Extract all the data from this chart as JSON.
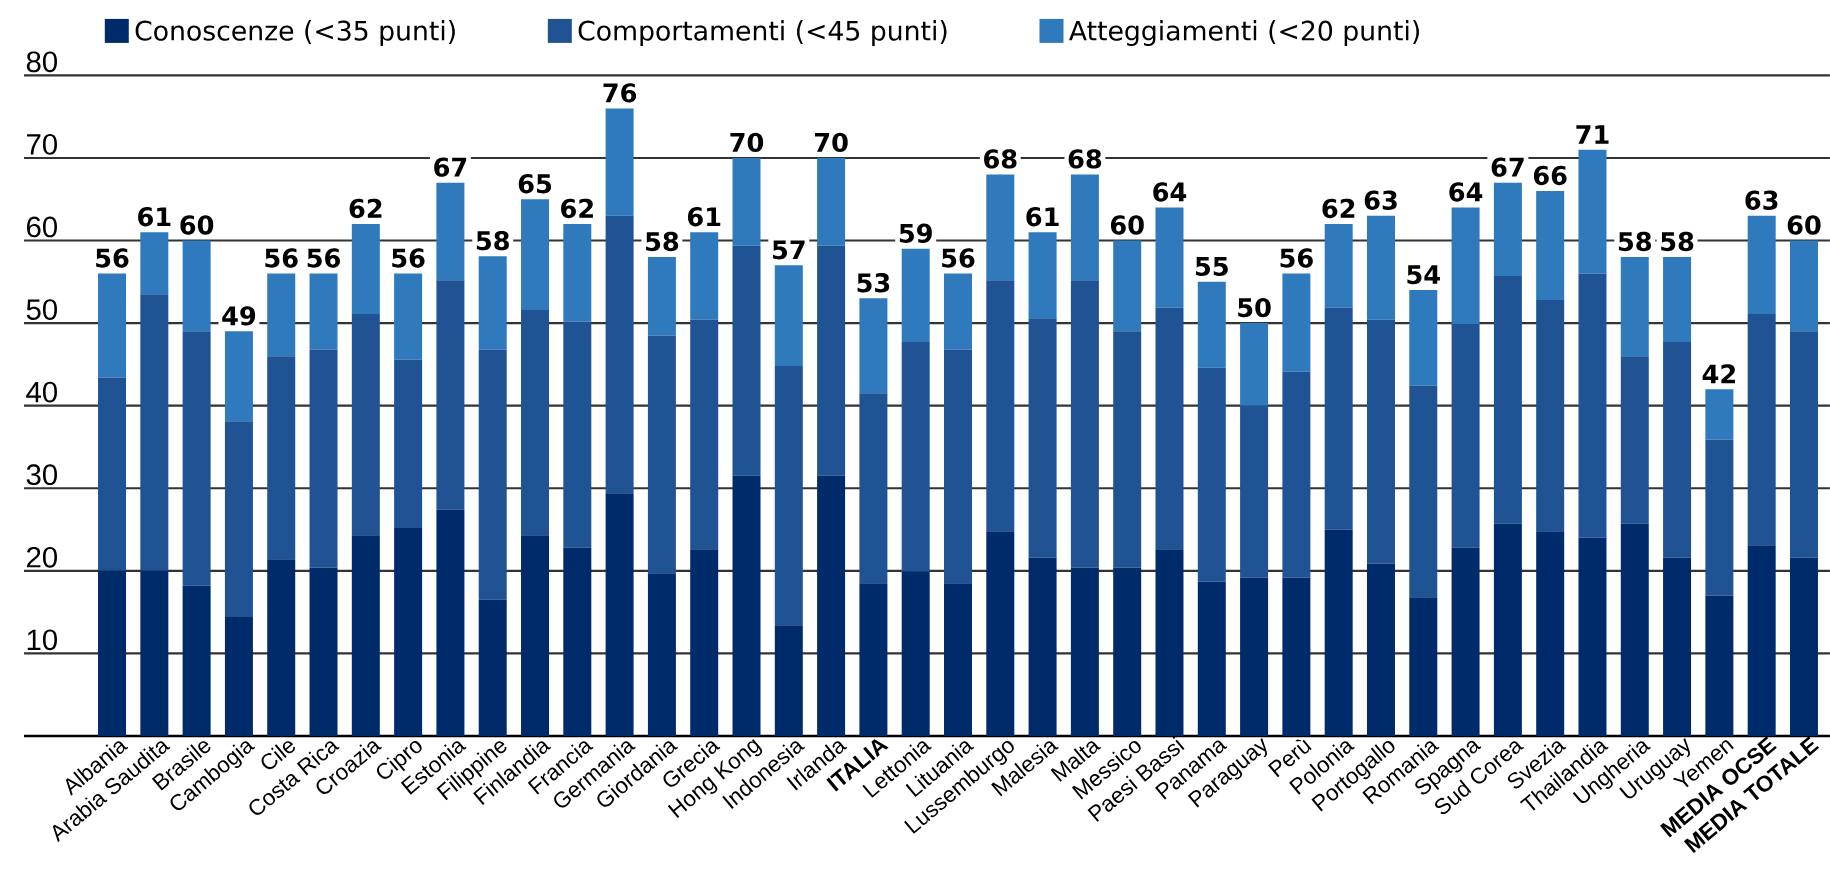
{
  "chart_data": {
    "type": "bar",
    "stacked": true,
    "categories": [
      "Albania",
      "Arabia Saudita",
      "Brasile",
      "Cambogia",
      "Cile",
      "Costa Rica",
      "Croazia",
      "Cipro",
      "Estonia",
      "Filippine",
      "Finlandia",
      "Francia",
      "Germania",
      "Giordania",
      "Grecia",
      "Hong Kong",
      "Indonesia",
      "Irlanda",
      "**ITALIA**",
      "Lettonia",
      "Lituania",
      "Lussemburgo",
      "Malesia",
      "Malta",
      "Messico",
      "Paesi Bassi",
      "Panama",
      "Paraguay",
      "Perù",
      "Polonia",
      "Portogallo",
      "Romania",
      "Spagna",
      "Sud Corea",
      "Svezia",
      "Thailandia",
      "Ungheria",
      "Uruguay",
      "Yemen",
      "**MEDIA OCSE**",
      "**MEDIA TOTALE**"
    ],
    "series": [
      {
        "name": "Conoscenze (<35 punti)",
        "color": "#002b6b",
        "values": [
          20.0,
          20.0,
          18.2,
          14.4,
          21.4,
          20.4,
          24.3,
          25.2,
          27.4,
          16.5,
          24.3,
          22.8,
          29.4,
          19.7,
          22.6,
          31.5,
          13.4,
          31.5,
          18.5,
          19.9,
          18.5,
          24.8,
          21.6,
          20.4,
          20.4,
          22.6,
          18.7,
          19.2,
          19.2,
          25.0,
          20.9,
          16.8,
          22.8,
          25.7,
          24.8,
          24.0,
          25.7,
          21.6,
          17.0,
          23.1,
          21.6
        ]
      },
      {
        "name": "Comportamenti (<45 punti)",
        "color": "#1f5394",
        "values": [
          23.4,
          33.5,
          30.8,
          23.7,
          24.6,
          26.4,
          26.8,
          20.4,
          27.8,
          30.3,
          27.3,
          27.4,
          33.6,
          28.8,
          27.8,
          27.9,
          31.4,
          27.9,
          23.0,
          27.8,
          28.3,
          30.4,
          29.0,
          34.8,
          28.6,
          29.3,
          25.9,
          20.8,
          24.9,
          26.9,
          29.5,
          25.6,
          27.1,
          30.0,
          28.0,
          32.0,
          20.3,
          26.1,
          18.9,
          28.0,
          27.4
        ]
      },
      {
        "name": "Atteggiamenti (<20 punti)",
        "color": "#2e7abd",
        "values": [
          12.6,
          7.5,
          11.0,
          10.9,
          10.0,
          9.2,
          10.9,
          10.4,
          11.8,
          11.3,
          13.4,
          11.8,
          13.0,
          9.5,
          10.6,
          10.6,
          12.2,
          10.6,
          11.5,
          11.3,
          9.2,
          12.8,
          10.4,
          12.8,
          11.0,
          12.1,
          10.4,
          10.0,
          11.9,
          10.1,
          12.6,
          11.6,
          14.1,
          11.3,
          13.2,
          15.0,
          12.0,
          10.3,
          6.1,
          11.9,
          11.0
        ]
      }
    ],
    "totals": [
      "56",
      "61",
      "60",
      "49",
      "56",
      "56",
      "62",
      "56",
      "67",
      "58",
      "65",
      "62",
      "76",
      "58",
      "61",
      "70",
      "57",
      "70",
      "53",
      "59",
      "56",
      "68",
      "61",
      "68",
      "60",
      "64",
      "55",
      "50",
      "56",
      "62",
      "63",
      "54",
      "64",
      "67",
      "66",
      "71",
      "58",
      "58",
      "42",
      "63",
      "60"
    ],
    "ylim": [
      0,
      80
    ],
    "yticks": [
      10,
      20,
      30,
      40,
      50,
      60,
      70,
      80
    ],
    "grid": "y",
    "legend": "top"
  }
}
